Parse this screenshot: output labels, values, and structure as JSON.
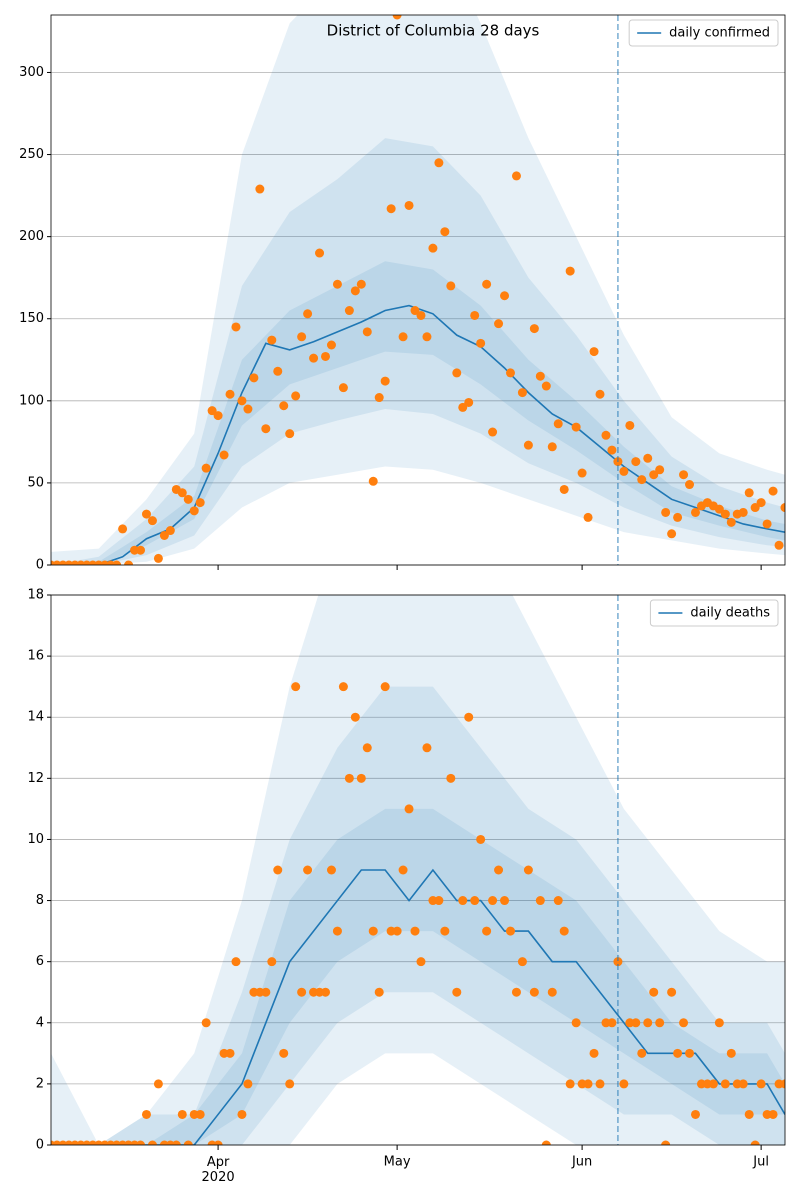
{
  "chart_data": [
    {
      "type": "line",
      "title": "District of Columbia 28 days",
      "xlim": [
        "2020-03-04",
        "2020-07-05"
      ],
      "xticks": [
        "2020-04-01",
        "2020-05-01",
        "2020-06-01",
        "2020-07-01"
      ],
      "ylim": [
        0,
        335
      ],
      "yticks": [
        0,
        50,
        100,
        150,
        200,
        250,
        300
      ],
      "grid": true,
      "legend": "upper right",
      "vline": "2020-06-07",
      "vline_color": "#1f77b4",
      "line": {
        "name": "daily confirmed",
        "color": "#1f77b4",
        "x": [
          "2020-03-04",
          "2020-03-08",
          "2020-03-12",
          "2020-03-16",
          "2020-03-20",
          "2020-03-24",
          "2020-03-28",
          "2020-04-01",
          "2020-04-05",
          "2020-04-09",
          "2020-04-13",
          "2020-04-17",
          "2020-04-21",
          "2020-04-25",
          "2020-04-29",
          "2020-05-03",
          "2020-05-07",
          "2020-05-11",
          "2020-05-15",
          "2020-05-19",
          "2020-05-23",
          "2020-05-27",
          "2020-05-31",
          "2020-06-04",
          "2020-06-08",
          "2020-06-12",
          "2020-06-16",
          "2020-06-20",
          "2020-06-24",
          "2020-06-28",
          "2020-07-02",
          "2020-07-05"
        ],
        "values": [
          0,
          0,
          0,
          5,
          16,
          22,
          35,
          68,
          105,
          135,
          131,
          136,
          142,
          148,
          155,
          158,
          153,
          140,
          133,
          120,
          105,
          92,
          84,
          72,
          60,
          50,
          40,
          35,
          30,
          25,
          22,
          20
        ]
      },
      "bands": {
        "color": "#1f77b4",
        "x": [
          "2020-03-04",
          "2020-03-12",
          "2020-03-20",
          "2020-03-28",
          "2020-04-05",
          "2020-04-13",
          "2020-04-21",
          "2020-04-29",
          "2020-05-07",
          "2020-05-15",
          "2020-05-23",
          "2020-05-31",
          "2020-06-08",
          "2020-06-16",
          "2020-06-24",
          "2020-07-02",
          "2020-07-05"
        ],
        "levels": [
          {
            "lower": [
              0,
              0,
              2,
              10,
              35,
              50,
              55,
              60,
              58,
              50,
              40,
              30,
              20,
              15,
              10,
              7,
              6
            ],
            "upper": [
              8,
              10,
              40,
              80,
              250,
              330,
              360,
              400,
              390,
              330,
              260,
              200,
              140,
              90,
              68,
              58,
              55
            ]
          },
          {
            "lower": [
              0,
              0,
              6,
              18,
              60,
              80,
              88,
              95,
              92,
              80,
              62,
              50,
              35,
              24,
              17,
              12,
              11
            ],
            "upper": [
              0,
              5,
              28,
              60,
              170,
              215,
              235,
              260,
              255,
              225,
              175,
              140,
              100,
              66,
              48,
              38,
              35
            ]
          },
          {
            "lower": [
              0,
              0,
              12,
              28,
              85,
              110,
              120,
              130,
              128,
              110,
              88,
              70,
              50,
              32,
              24,
              17,
              15
            ],
            "upper": [
              0,
              2,
              20,
              42,
              125,
              155,
              170,
              185,
              180,
              158,
              125,
              100,
              72,
              48,
              36,
              27,
              25
            ]
          }
        ]
      },
      "observed": {
        "color": "#ff7f0e",
        "x": [
          "2020-03-04",
          "2020-03-05",
          "2020-03-06",
          "2020-03-07",
          "2020-03-08",
          "2020-03-09",
          "2020-03-10",
          "2020-03-11",
          "2020-03-12",
          "2020-03-13",
          "2020-03-14",
          "2020-03-15",
          "2020-03-16",
          "2020-03-17",
          "2020-03-18",
          "2020-03-19",
          "2020-03-20",
          "2020-03-21",
          "2020-03-22",
          "2020-03-23",
          "2020-03-24",
          "2020-03-25",
          "2020-03-26",
          "2020-03-27",
          "2020-03-28",
          "2020-03-29",
          "2020-03-30",
          "2020-03-31",
          "2020-04-01",
          "2020-04-02",
          "2020-04-03",
          "2020-04-04",
          "2020-04-05",
          "2020-04-06",
          "2020-04-07",
          "2020-04-08",
          "2020-04-09",
          "2020-04-10",
          "2020-04-11",
          "2020-04-12",
          "2020-04-13",
          "2020-04-14",
          "2020-04-15",
          "2020-04-16",
          "2020-04-17",
          "2020-04-18",
          "2020-04-19",
          "2020-04-20",
          "2020-04-21",
          "2020-04-22",
          "2020-04-23",
          "2020-04-24",
          "2020-04-25",
          "2020-04-26",
          "2020-04-27",
          "2020-04-28",
          "2020-04-29",
          "2020-04-30",
          "2020-05-01",
          "2020-05-02",
          "2020-05-03",
          "2020-05-04",
          "2020-05-05",
          "2020-05-06",
          "2020-05-07",
          "2020-05-08",
          "2020-05-09",
          "2020-05-10",
          "2020-05-11",
          "2020-05-12",
          "2020-05-13",
          "2020-05-14",
          "2020-05-15",
          "2020-05-16",
          "2020-05-17",
          "2020-05-18",
          "2020-05-19",
          "2020-05-20",
          "2020-05-21",
          "2020-05-22",
          "2020-05-23",
          "2020-05-24",
          "2020-05-25",
          "2020-05-26",
          "2020-05-27",
          "2020-05-28",
          "2020-05-29",
          "2020-05-30",
          "2020-05-31",
          "2020-06-01",
          "2020-06-02",
          "2020-06-03",
          "2020-06-04",
          "2020-06-05",
          "2020-06-06",
          "2020-06-07",
          "2020-06-08",
          "2020-06-09",
          "2020-06-10",
          "2020-06-11",
          "2020-06-12",
          "2020-06-13",
          "2020-06-14",
          "2020-06-15",
          "2020-06-16",
          "2020-06-17",
          "2020-06-18",
          "2020-06-19",
          "2020-06-20",
          "2020-06-21",
          "2020-06-22",
          "2020-06-23",
          "2020-06-24",
          "2020-06-25",
          "2020-06-26",
          "2020-06-27",
          "2020-06-28",
          "2020-06-29",
          "2020-06-30",
          "2020-07-01",
          "2020-07-02",
          "2020-07-03",
          "2020-07-04",
          "2020-07-05"
        ],
        "values": [
          0,
          0,
          0,
          0,
          0,
          0,
          0,
          0,
          0,
          0,
          0,
          0,
          22,
          0,
          9,
          9,
          31,
          27,
          4,
          18,
          21,
          46,
          44,
          40,
          33,
          38,
          59,
          94,
          91,
          67,
          104,
          145,
          100,
          95,
          114,
          229,
          83,
          137,
          118,
          97,
          80,
          103,
          139,
          153,
          126,
          190,
          127,
          134,
          171,
          108,
          155,
          167,
          171,
          142,
          51,
          102,
          112,
          217,
          335,
          139,
          219,
          155,
          152,
          139,
          193,
          245,
          203,
          170,
          117,
          96,
          99,
          152,
          135,
          171,
          81,
          147,
          164,
          117,
          237,
          105,
          73,
          144,
          115,
          109,
          72,
          86,
          46,
          179,
          84,
          56,
          29,
          130,
          104,
          79,
          70,
          63,
          57,
          85,
          63,
          52,
          65,
          55,
          58,
          32,
          19,
          29,
          55,
          49,
          32,
          36,
          38,
          36,
          34,
          31,
          26,
          31,
          32,
          44,
          35,
          38,
          25,
          45,
          12,
          35
        ]
      }
    },
    {
      "type": "line",
      "xlim": [
        "2020-03-04",
        "2020-07-05"
      ],
      "xticks": [
        {
          "value": "2020-04-01",
          "label": "Apr\n2020"
        },
        {
          "value": "2020-05-01",
          "label": "May"
        },
        {
          "value": "2020-06-01",
          "label": "Jun"
        },
        {
          "value": "2020-07-01",
          "label": "Jul"
        }
      ],
      "ylim": [
        0,
        18
      ],
      "yticks": [
        0,
        2,
        4,
        6,
        8,
        10,
        12,
        14,
        16,
        18
      ],
      "grid": true,
      "legend": "upper right",
      "vline": "2020-06-07",
      "vline_color": "#1f77b4",
      "line": {
        "name": "daily deaths",
        "color": "#1f77b4",
        "x": [
          "2020-03-04",
          "2020-03-08",
          "2020-03-12",
          "2020-03-16",
          "2020-03-20",
          "2020-03-24",
          "2020-03-28",
          "2020-04-01",
          "2020-04-05",
          "2020-04-09",
          "2020-04-13",
          "2020-04-17",
          "2020-04-21",
          "2020-04-25",
          "2020-04-29",
          "2020-05-03",
          "2020-05-07",
          "2020-05-11",
          "2020-05-15",
          "2020-05-19",
          "2020-05-23",
          "2020-05-27",
          "2020-05-31",
          "2020-06-04",
          "2020-06-08",
          "2020-06-12",
          "2020-06-16",
          "2020-06-20",
          "2020-06-24",
          "2020-06-28",
          "2020-07-02",
          "2020-07-05"
        ],
        "values": [
          0,
          0,
          0,
          0,
          0,
          0,
          0,
          1,
          2,
          4,
          6,
          7,
          8,
          9,
          9,
          8,
          9,
          8,
          8,
          7,
          7,
          6,
          6,
          5,
          4,
          3,
          3,
          3,
          2,
          2,
          2,
          1
        ]
      },
      "bands": {
        "color": "#1f77b4",
        "x": [
          "2020-03-04",
          "2020-03-12",
          "2020-03-20",
          "2020-03-28",
          "2020-04-05",
          "2020-04-13",
          "2020-04-21",
          "2020-04-29",
          "2020-05-07",
          "2020-05-15",
          "2020-05-23",
          "2020-05-31",
          "2020-06-08",
          "2020-06-16",
          "2020-06-24",
          "2020-07-02",
          "2020-07-05"
        ],
        "levels": [
          {
            "lower": [
              0,
              0,
              0,
              0,
              0,
              0,
              2,
              3,
              3,
              2,
              1,
              0,
              0,
              0,
              0,
              0,
              0
            ],
            "upper": [
              3,
              0,
              1,
              3,
              8,
              15,
              20,
              22,
              22,
              20,
              17,
              14,
              11,
              9,
              7,
              6,
              6
            ]
          },
          {
            "lower": [
              0,
              0,
              0,
              0,
              0,
              2,
              4,
              5,
              5,
              4,
              3,
              2,
              1,
              1,
              0,
              0,
              0
            ],
            "upper": [
              0,
              0,
              1,
              1,
              5,
              10,
              13,
              15,
              15,
              13,
              11,
              10,
              8,
              6,
              4,
              4,
              3
            ]
          },
          {
            "lower": [
              0,
              0,
              0,
              0,
              1,
              4,
              6,
              7,
              7,
              6,
              5,
              4,
              3,
              2,
              1,
              1,
              1
            ],
            "upper": [
              0,
              0,
              0,
              1,
              3,
              8,
              10,
              11,
              11,
              10,
              9,
              8,
              6,
              4,
              3,
              3,
              2
            ]
          }
        ]
      },
      "observed": {
        "color": "#ff7f0e",
        "x": [
          "2020-03-04",
          "2020-03-05",
          "2020-03-06",
          "2020-03-07",
          "2020-03-08",
          "2020-03-09",
          "2020-03-10",
          "2020-03-11",
          "2020-03-12",
          "2020-03-13",
          "2020-03-14",
          "2020-03-15",
          "2020-03-16",
          "2020-03-17",
          "2020-03-18",
          "2020-03-19",
          "2020-03-20",
          "2020-03-21",
          "2020-03-22",
          "2020-03-23",
          "2020-03-24",
          "2020-03-25",
          "2020-03-26",
          "2020-03-27",
          "2020-03-28",
          "2020-03-29",
          "2020-03-30",
          "2020-03-31",
          "2020-04-01",
          "2020-04-02",
          "2020-04-03",
          "2020-04-04",
          "2020-04-05",
          "2020-04-06",
          "2020-04-07",
          "2020-04-08",
          "2020-04-09",
          "2020-04-10",
          "2020-04-11",
          "2020-04-12",
          "2020-04-13",
          "2020-04-14",
          "2020-04-15",
          "2020-04-16",
          "2020-04-17",
          "2020-04-18",
          "2020-04-19",
          "2020-04-20",
          "2020-04-21",
          "2020-04-22",
          "2020-04-23",
          "2020-04-24",
          "2020-04-25",
          "2020-04-26",
          "2020-04-27",
          "2020-04-28",
          "2020-04-29",
          "2020-04-30",
          "2020-05-01",
          "2020-05-02",
          "2020-05-03",
          "2020-05-04",
          "2020-05-05",
          "2020-05-06",
          "2020-05-07",
          "2020-05-08",
          "2020-05-09",
          "2020-05-10",
          "2020-05-11",
          "2020-05-12",
          "2020-05-13",
          "2020-05-14",
          "2020-05-15",
          "2020-05-16",
          "2020-05-17",
          "2020-05-18",
          "2020-05-19",
          "2020-05-20",
          "2020-05-21",
          "2020-05-22",
          "2020-05-23",
          "2020-05-24",
          "2020-05-25",
          "2020-05-26",
          "2020-05-27",
          "2020-05-28",
          "2020-05-29",
          "2020-05-30",
          "2020-05-31",
          "2020-06-01",
          "2020-06-02",
          "2020-06-03",
          "2020-06-04",
          "2020-06-05",
          "2020-06-06",
          "2020-06-07",
          "2020-06-08",
          "2020-06-09",
          "2020-06-10",
          "2020-06-11",
          "2020-06-12",
          "2020-06-13",
          "2020-06-14",
          "2020-06-15",
          "2020-06-16",
          "2020-06-17",
          "2020-06-18",
          "2020-06-19",
          "2020-06-20",
          "2020-06-21",
          "2020-06-22",
          "2020-06-23",
          "2020-06-24",
          "2020-06-25",
          "2020-06-26",
          "2020-06-27",
          "2020-06-28",
          "2020-06-29",
          "2020-06-30",
          "2020-07-01",
          "2020-07-02",
          "2020-07-03",
          "2020-07-04",
          "2020-07-05"
        ],
        "values": [
          0,
          0,
          0,
          0,
          0,
          0,
          0,
          0,
          0,
          0,
          0,
          0,
          0,
          0,
          0,
          0,
          1,
          0,
          2,
          0,
          0,
          0,
          1,
          0,
          1,
          1,
          4,
          0,
          0,
          3,
          3,
          6,
          1,
          2,
          5,
          5,
          5,
          6,
          9,
          3,
          2,
          15,
          5,
          9,
          5,
          5,
          5,
          9,
          7,
          15,
          12,
          14,
          12,
          13,
          7,
          5,
          15,
          7,
          7,
          9,
          11,
          7,
          6,
          13,
          8,
          8,
          7,
          12,
          5,
          8,
          14,
          8,
          10,
          7,
          8,
          9,
          8,
          7,
          5,
          6,
          9,
          5,
          8,
          0,
          5,
          8,
          7,
          2,
          4,
          2,
          2,
          3,
          2,
          4,
          4,
          6,
          2,
          4,
          4,
          3,
          4,
          5,
          4,
          0,
          5,
          3,
          4,
          3,
          1,
          2,
          2,
          2,
          4,
          2,
          3,
          2,
          2,
          1,
          0,
          2,
          1,
          1,
          2,
          2
        ]
      }
    }
  ]
}
